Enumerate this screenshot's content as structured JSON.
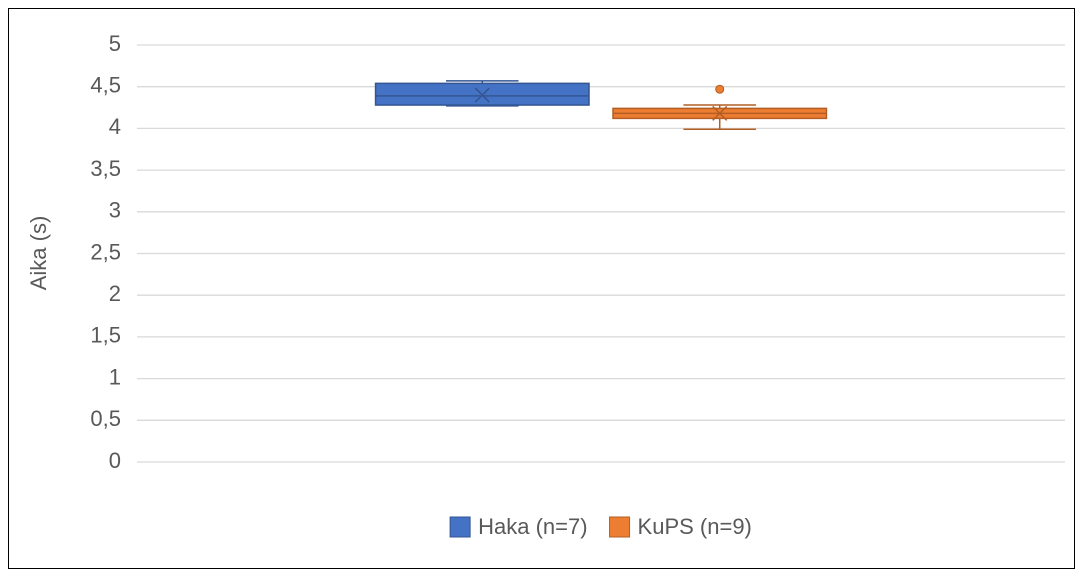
{
  "chart_data": {
    "type": "box",
    "y_label": "Aika (s)",
    "ylim": [
      0,
      5
    ],
    "yticks": [
      0,
      {
        "value": 0.5,
        "label": "0,5"
      },
      1,
      {
        "value": 1.5,
        "label": "1,5"
      },
      2,
      {
        "value": 2.5,
        "label": "2,5"
      },
      3,
      {
        "value": 3.5,
        "label": "3,5"
      },
      4,
      {
        "value": 4.5,
        "label": "4,5"
      },
      5
    ],
    "grid": true,
    "legend": "bottom",
    "series": [
      {
        "name": "Haka (n=7)",
        "color": "#4472c4",
        "min": 4.27,
        "q1": 4.28,
        "median": 4.39,
        "q3": 4.54,
        "max": 4.57,
        "mean": 4.4,
        "outliers": []
      },
      {
        "name": "KuPS (n=9)",
        "color": "#ed7d31",
        "min": 3.99,
        "q1": 4.12,
        "median": 4.18,
        "q3": 4.24,
        "max": 4.28,
        "mean": 4.18,
        "outliers": [
          4.47
        ]
      }
    ]
  }
}
